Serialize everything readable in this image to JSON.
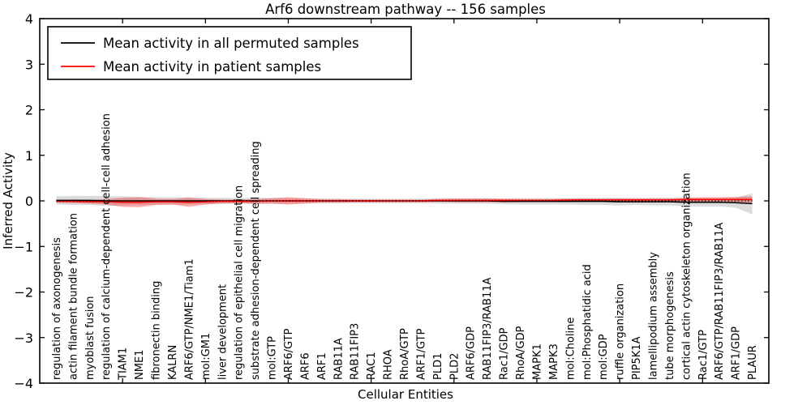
{
  "figure": {
    "title": "Arf6 downstream pathway -- 156 samples",
    "xlabel": "Cellular Entities",
    "ylabel": "Inferred Activity"
  },
  "legend": {
    "entries": [
      {
        "label": "Mean activity in all permuted samples",
        "color": "#000000"
      },
      {
        "label": "Mean activity in patient samples",
        "color": "#ff0000"
      }
    ]
  },
  "chart_data": {
    "type": "line",
    "title": "Arf6 downstream pathway -- 156 samples",
    "xlabel": "Cellular Entities",
    "ylabel": "Inferred Activity",
    "ylim": [
      -4,
      4
    ],
    "yticks": [
      -4,
      -3,
      -2,
      -1,
      0,
      1,
      2,
      3,
      4
    ],
    "ytick_labels": [
      "−4",
      "−3",
      "−2",
      "−1",
      "0",
      "1",
      "2",
      "3",
      "4"
    ],
    "xlim": [
      0,
      44
    ],
    "xticks": [
      5,
      10,
      15,
      20,
      25,
      30,
      35,
      40
    ],
    "grid": false,
    "legend_position": "upper left",
    "zero_line": {
      "style": "dotted",
      "color": "#000000",
      "y": 0
    },
    "entities": [
      "regulation of axonogenesis",
      "actin filament bundle formation",
      "myoblast fusion",
      "regulation of calcium-dependent cell-cell adhesion",
      "TIAM1",
      "NME1",
      "fibronectin binding",
      "KALRN",
      "ARF6/GTP/NME1/Tiam1",
      "mol:GM1",
      "liver development",
      "regulation of epithelial cell migration",
      "substrate adhesion-dependent cell spreading",
      "mol:GTP",
      "ARF6/GTP",
      "ARF6",
      "ARF1",
      "RAB11A",
      "RAB11FIP3",
      "RAC1",
      "RHOA",
      "RhoA/GTP",
      "ARF1/GTP",
      "PLD1",
      "PLD2",
      "ARF6/GDP",
      "RAB11FIP3/RAB11A",
      "Rac1/GDP",
      "RhoA/GDP",
      "MAPK1",
      "MAPK3",
      "mol:Choline",
      "mol:Phosphatidic acid",
      "mol:GDP",
      "ruffle organization",
      "PIP5K1A",
      "lamellipodium assembly",
      "tube morphogenesis",
      "cortical actin cytoskeleton organization",
      "Rac1/GTP",
      "ARF6/GTP/RAB11FIP3/RAB11A",
      "ARF1/GDP",
      "PLAUR"
    ],
    "series": [
      {
        "name": "Mean activity in all permuted samples",
        "color": "#000000",
        "band_color": "#909090",
        "band_opacity": 0.32,
        "values": [
          0.01,
          0.01,
          0.01,
          0.0,
          0.0,
          0.0,
          0.0,
          0.0,
          0.0,
          0.0,
          0.0,
          0.0,
          0.0,
          0.0,
          0.0,
          0.0,
          0.0,
          0.0,
          0.0,
          0.0,
          0.0,
          0.0,
          0.0,
          0.0,
          0.0,
          0.0,
          0.0,
          -0.01,
          -0.01,
          -0.01,
          -0.01,
          -0.01,
          -0.01,
          -0.01,
          -0.02,
          -0.02,
          -0.02,
          -0.02,
          -0.03,
          -0.03,
          -0.03,
          -0.04,
          -0.06
        ],
        "band": [
          0.09,
          0.1,
          0.1,
          0.11,
          0.1,
          0.09,
          0.08,
          0.08,
          0.08,
          0.07,
          0.07,
          0.06,
          0.07,
          0.06,
          0.06,
          0.05,
          0.05,
          0.05,
          0.05,
          0.05,
          0.05,
          0.05,
          0.05,
          0.06,
          0.06,
          0.06,
          0.06,
          0.06,
          0.07,
          0.07,
          0.07,
          0.07,
          0.08,
          0.08,
          0.08,
          0.07,
          0.08,
          0.08,
          0.09,
          0.09,
          0.09,
          0.11,
          0.23
        ]
      },
      {
        "name": "Mean activity in patient samples",
        "color": "#ff0000",
        "band_color": "#ff0000",
        "band_opacity": 0.32,
        "values": [
          -0.01,
          -0.01,
          -0.02,
          -0.02,
          -0.03,
          -0.03,
          -0.02,
          -0.02,
          -0.03,
          -0.02,
          -0.01,
          -0.01,
          -0.01,
          0.0,
          0.0,
          0.0,
          0.0,
          0.0,
          0.0,
          0.0,
          0.0,
          0.0,
          0.0,
          0.01,
          0.01,
          0.01,
          0.01,
          0.01,
          0.01,
          0.01,
          0.01,
          0.02,
          0.02,
          0.02,
          0.02,
          0.02,
          0.02,
          0.02,
          0.03,
          0.03,
          0.03,
          0.03,
          0.03
        ],
        "band": [
          0.03,
          0.04,
          0.04,
          0.06,
          0.1,
          0.11,
          0.07,
          0.06,
          0.1,
          0.06,
          0.04,
          0.04,
          0.05,
          0.06,
          0.08,
          0.06,
          0.04,
          0.04,
          0.03,
          0.03,
          0.03,
          0.03,
          0.03,
          0.03,
          0.04,
          0.04,
          0.04,
          0.04,
          0.03,
          0.03,
          0.03,
          0.03,
          0.03,
          0.03,
          0.04,
          0.04,
          0.04,
          0.04,
          0.04,
          0.05,
          0.05,
          0.06,
          0.07
        ]
      }
    ]
  }
}
